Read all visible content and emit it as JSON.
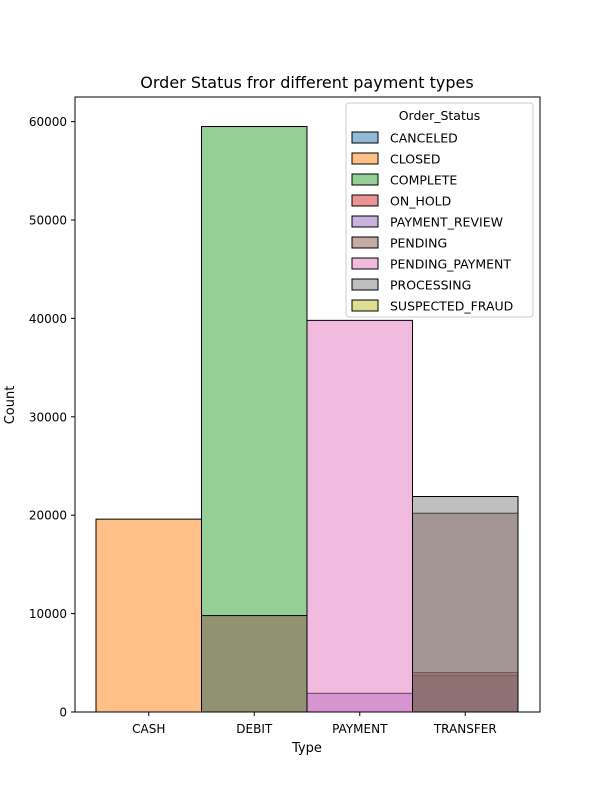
{
  "chart_data": {
    "type": "bar",
    "title": "Order Status fror different payment types",
    "xlabel": "Type",
    "ylabel": "Count",
    "ylim": [
      0,
      62500
    ],
    "yticks": [
      0,
      10000,
      20000,
      30000,
      40000,
      50000,
      60000
    ],
    "ytick_labels": [
      "0",
      "10000",
      "20000",
      "30000",
      "40000",
      "50000",
      "60000"
    ],
    "categories": [
      "CASH",
      "DEBIT",
      "PAYMENT",
      "TRANSFER"
    ],
    "grid": false,
    "legend": {
      "title": "Order_Status",
      "position": "top-right"
    },
    "series": [
      {
        "name": "CANCELED",
        "color": "#1f77b4",
        "values": [
          0,
          0,
          0,
          3700
        ]
      },
      {
        "name": "CLOSED",
        "color": "#ff7f0e",
        "values": [
          19600,
          0,
          0,
          0
        ]
      },
      {
        "name": "COMPLETE",
        "color": "#2ca02c",
        "values": [
          0,
          59500,
          0,
          0
        ]
      },
      {
        "name": "ON_HOLD",
        "color": "#d62728",
        "values": [
          0,
          0,
          0,
          4000
        ]
      },
      {
        "name": "PAYMENT_REVIEW",
        "color": "#9467bd",
        "values": [
          0,
          0,
          1900,
          0
        ]
      },
      {
        "name": "PENDING",
        "color": "#8c564b",
        "values": [
          0,
          9800,
          0,
          20200
        ]
      },
      {
        "name": "PENDING_PAYMENT",
        "color": "#e377c2",
        "values": [
          0,
          0,
          39800,
          0
        ]
      },
      {
        "name": "PROCESSING",
        "color": "#7f7f7f",
        "values": [
          0,
          0,
          0,
          21900
        ]
      },
      {
        "name": "SUSPECTED_FRAUD",
        "color": "#bcbd22",
        "values": [
          0,
          0,
          0,
          0
        ]
      }
    ]
  }
}
